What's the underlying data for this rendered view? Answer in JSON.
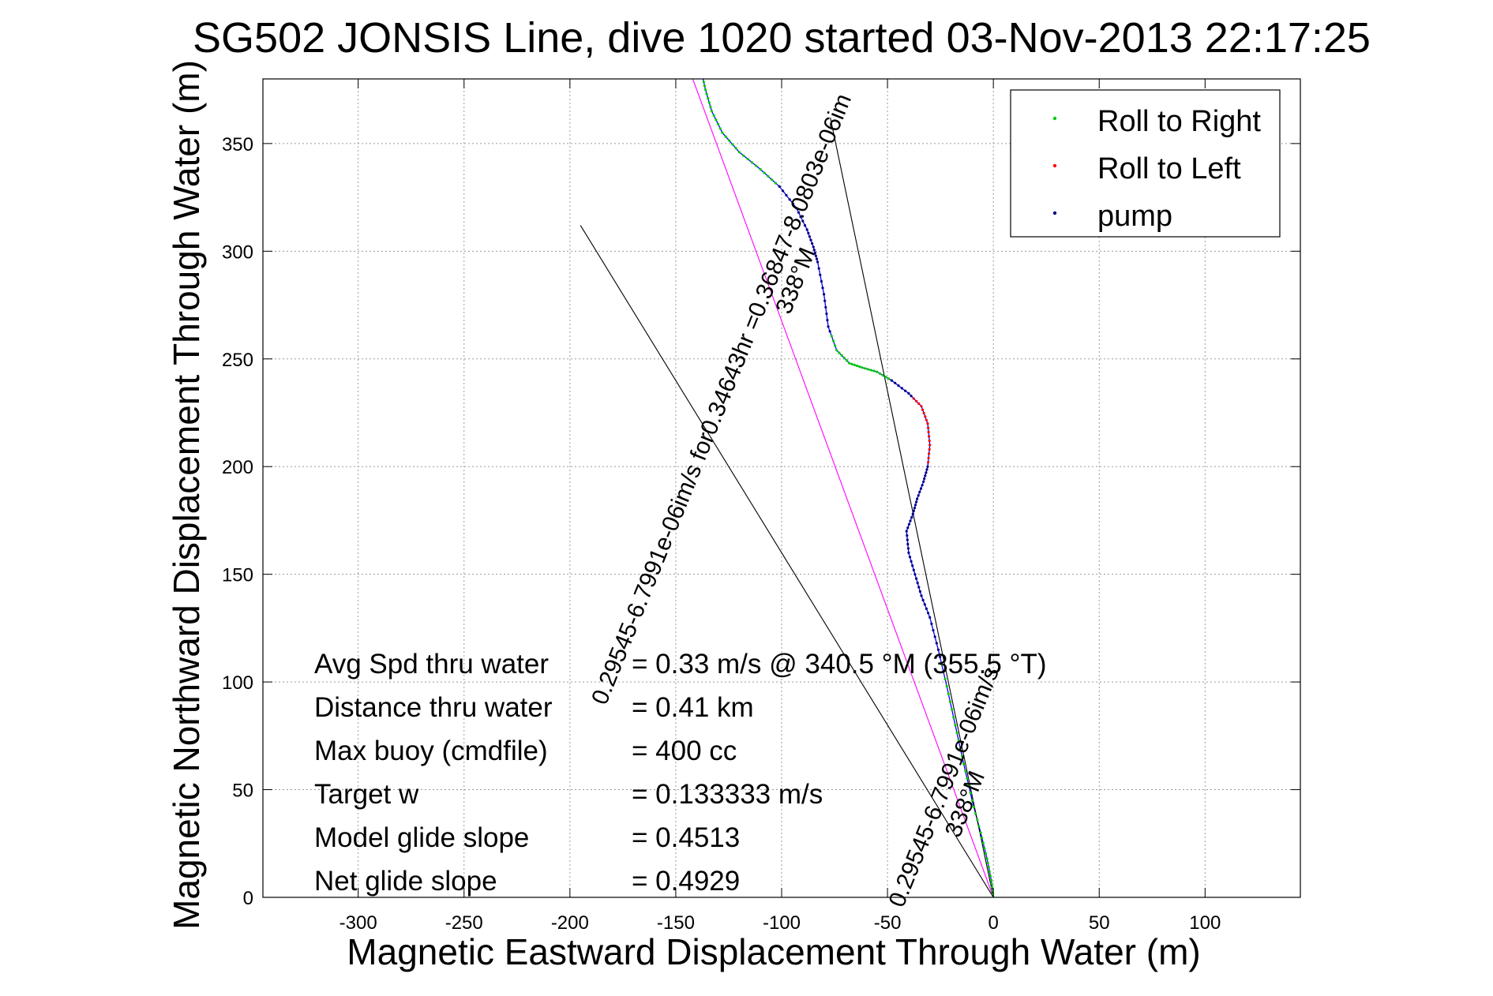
{
  "chart_data": {
    "type": "line",
    "title": "SG502 JONSIS Line, dive 1020 started 03-Nov-2013 22:17:25",
    "xlabel": "Magnetic Eastward Displacement Through Water (m)",
    "ylabel": "Magnetic Northward Displacement Through Water (m)",
    "xlim": [
      -345,
      145
    ],
    "ylim": [
      0,
      380
    ],
    "grid": true,
    "x_ticks": [
      -300,
      -250,
      -200,
      -150,
      -100,
      -50,
      0,
      50,
      100
    ],
    "y_ticks": [
      0,
      50,
      100,
      150,
      200,
      250,
      300,
      350
    ],
    "legend_position": "top-right",
    "legend": [
      {
        "label": "Roll to Right",
        "color": "#00cc00"
      },
      {
        "label": "Roll to Left",
        "color": "#ff0000"
      },
      {
        "label": "pump",
        "color": "#000080"
      }
    ],
    "colors": {
      "track": "#0000ff",
      "fit_line": "#ff00ff",
      "reference": "#000000"
    },
    "series": [
      {
        "color": "#0000ff",
        "points": [
          [
            0,
            0
          ],
          [
            -1,
            8
          ],
          [
            -3,
            18
          ],
          [
            -6,
            30
          ],
          [
            -10,
            45
          ],
          [
            -14,
            62
          ],
          [
            -18,
            80
          ],
          [
            -22,
            98
          ],
          [
            -26,
            115
          ],
          [
            -30,
            130
          ],
          [
            -34,
            140
          ],
          [
            -37,
            150
          ],
          [
            -40,
            160
          ],
          [
            -41,
            170
          ],
          [
            -38,
            178
          ],
          [
            -36,
            185
          ],
          [
            -33,
            193
          ],
          [
            -31,
            200
          ],
          [
            -30,
            210
          ],
          [
            -31,
            220
          ],
          [
            -34,
            228
          ],
          [
            -40,
            234
          ],
          [
            -48,
            240
          ],
          [
            -55,
            244
          ],
          [
            -62,
            246
          ],
          [
            -68,
            248
          ],
          [
            -74,
            254
          ],
          [
            -78,
            265
          ],
          [
            -80,
            280
          ],
          [
            -83,
            295
          ],
          [
            -85,
            302
          ],
          [
            -88,
            310
          ],
          [
            -93,
            320
          ],
          [
            -101,
            330
          ],
          [
            -110,
            338
          ],
          [
            -120,
            346
          ],
          [
            -128,
            355
          ],
          [
            -133,
            365
          ],
          [
            -136,
            375
          ],
          [
            -138,
            384
          ]
        ]
      },
      {
        "color": "#ff00ff",
        "points": [
          [
            0,
            0
          ],
          [
            -142,
            380
          ]
        ]
      },
      {
        "color": "#000000",
        "points": [
          [
            0,
            0
          ],
          [
            -195,
            312
          ]
        ]
      },
      {
        "color": "#000000",
        "points": [
          [
            0,
            0
          ],
          [
            -77,
            362
          ]
        ]
      }
    ],
    "annotations": [
      {
        "text": "0.29545-6.7991e-06im/s for0.34643hr =0.36847-8.0803e-06im",
        "x": -125,
        "y": 230,
        "angle": -68
      },
      {
        "text": "338°M",
        "x": -90,
        "y": 285,
        "angle": -68
      },
      {
        "text": "0.29545-6.7991e-06im/s",
        "x": -20,
        "y": 50,
        "angle": -68
      },
      {
        "text": "338°M",
        "x": -10,
        "y": 42,
        "angle": -68
      }
    ],
    "stats": [
      {
        "label": "Avg Spd thru water",
        "value": "=  0.33 m/s @  340.5 °M (355.5 °T)"
      },
      {
        "label": "Distance thru water",
        "value": "=  0.41 km"
      },
      {
        "label": "Max buoy (cmdfile)",
        "value": "= 400 cc"
      },
      {
        "label": "Target w",
        "value": "= 0.133333 m/s"
      },
      {
        "label": "Model glide slope",
        "value": "= 0.4513"
      },
      {
        "label": "Net glide slope",
        "value": "= 0.4929"
      }
    ]
  }
}
